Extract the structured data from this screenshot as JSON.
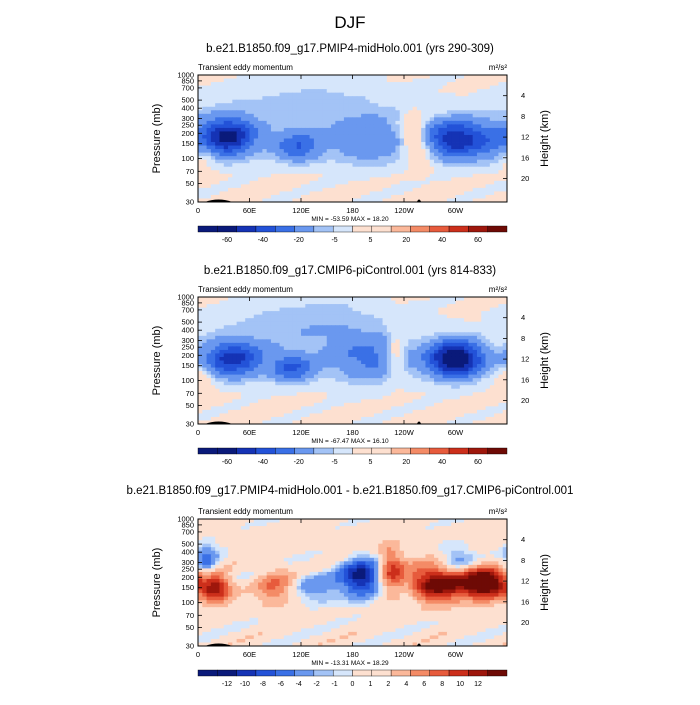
{
  "figure_title": "DJF",
  "colors": {
    "bg": "#fdebe0",
    "plot_border": "#000000",
    "negative_scale": [
      "#0a1a7a",
      "#1533b5",
      "#2352d8",
      "#3a70e6",
      "#6a98ef",
      "#a3c3f6",
      "#d6e6fb"
    ],
    "positive_scale": [
      "#fde0d0",
      "#fbb89a",
      "#f48b66",
      "#e75b3c",
      "#cc2f1b",
      "#9e170c",
      "#6e0a05"
    ]
  },
  "chart_data": [
    {
      "type": "heatmap",
      "title": "b.e21.B1850.f09_g17.PMIP4-midHolo.001 (yrs 290-309)",
      "left_label": "Transient eddy momentum",
      "units_label": "m²/s²",
      "ylabel_left": "Pressure (mb)",
      "ylabel_right": "Height (km)",
      "x_tick_labels": [
        "0",
        "60E",
        "120E",
        "180",
        "120W",
        "60W"
      ],
      "x_ticks_deg": [
        0,
        60,
        120,
        180,
        240,
        300
      ],
      "xlim": [
        0,
        360
      ],
      "pressure_tick_labels": [
        "30",
        "50",
        "70",
        "100",
        "150",
        "200",
        "250",
        "300",
        "400",
        "500",
        "700",
        "850",
        "1000"
      ],
      "pressure_ticks": [
        30,
        50,
        70,
        100,
        150,
        200,
        250,
        300,
        400,
        500,
        700,
        850,
        1000
      ],
      "ylim_mb": [
        1000,
        30
      ],
      "height_tick_labels": [
        "20",
        "16",
        "12",
        "8",
        "4"
      ],
      "height_ticks_km": [
        20,
        16,
        12,
        8,
        4
      ],
      "minmax_text": "MIN = -53.59  MAX =  18.20",
      "min": -53.59,
      "max": 18.2,
      "colorbar_labels": [
        "-60",
        "-40",
        "-20",
        "-5",
        "5",
        "20",
        "40",
        "60"
      ],
      "colorbar_levels": [
        -70,
        -60,
        -50,
        -40,
        -30,
        -20,
        -10,
        -5,
        0,
        5,
        10,
        20,
        30,
        40,
        50,
        60,
        70
      ],
      "features": [
        {
          "lon": 35,
          "p": 180,
          "value": -53.6,
          "wlon": 22,
          "wlogp": 0.16
        },
        {
          "lon": 300,
          "p": 170,
          "value": -48,
          "wlon": 24,
          "wlogp": 0.16
        },
        {
          "lon": 115,
          "p": 140,
          "value": -28,
          "wlon": 20,
          "wlogp": 0.13
        },
        {
          "lon": 200,
          "p": 160,
          "value": -18,
          "wlon": 35,
          "wlogp": 0.2
        },
        {
          "lon": 345,
          "p": 160,
          "value": -15,
          "wlon": 20,
          "wlogp": 0.18
        },
        {
          "lon": 250,
          "p": 190,
          "value": 18.2,
          "wlon": 10,
          "wlogp": 0.18
        },
        {
          "lon": 5,
          "p": 110,
          "value": 10,
          "wlon": 10,
          "wlogp": 0.12
        },
        {
          "lon": 130,
          "p": 400,
          "value": -8,
          "wlon": 80,
          "wlogp": 0.25
        },
        {
          "lon": 265,
          "p": 120,
          "value": 8,
          "wlon": 8,
          "wlogp": 0.15
        }
      ]
    },
    {
      "type": "heatmap",
      "title": "b.e21.B1850.f09_g17.CMIP6-piControl.001 (yrs 814-833)",
      "left_label": "Transient eddy momentum",
      "units_label": "m²/s²",
      "ylabel_left": "Pressure (mb)",
      "ylabel_right": "Height (km)",
      "x_tick_labels": [
        "0",
        "60E",
        "120E",
        "180",
        "120W",
        "60W"
      ],
      "x_ticks_deg": [
        0,
        60,
        120,
        180,
        240,
        300
      ],
      "xlim": [
        0,
        360
      ],
      "pressure_tick_labels": [
        "30",
        "50",
        "70",
        "100",
        "150",
        "200",
        "250",
        "300",
        "400",
        "500",
        "700",
        "850",
        "1000"
      ],
      "pressure_ticks": [
        30,
        50,
        70,
        100,
        150,
        200,
        250,
        300,
        400,
        500,
        700,
        850,
        1000
      ],
      "ylim_mb": [
        1000,
        30
      ],
      "height_tick_labels": [
        "20",
        "16",
        "12",
        "8",
        "4"
      ],
      "height_ticks_km": [
        20,
        16,
        12,
        8,
        4
      ],
      "minmax_text": "MIN = -67.47  MAX =  16.10",
      "min": -67.47,
      "max": 16.1,
      "colorbar_labels": [
        "-60",
        "-40",
        "-20",
        "-5",
        "5",
        "20",
        "40",
        "60"
      ],
      "colorbar_levels": [
        -70,
        -60,
        -50,
        -40,
        -30,
        -20,
        -10,
        -5,
        0,
        5,
        10,
        20,
        30,
        40,
        50,
        60,
        70
      ],
      "features": [
        {
          "lon": 40,
          "p": 180,
          "value": -45,
          "wlon": 25,
          "wlogp": 0.15
        },
        {
          "lon": 300,
          "p": 180,
          "value": -67.5,
          "wlon": 22,
          "wlogp": 0.15
        },
        {
          "lon": 110,
          "p": 140,
          "value": -30,
          "wlon": 18,
          "wlogp": 0.12
        },
        {
          "lon": 200,
          "p": 180,
          "value": -22,
          "wlon": 35,
          "wlogp": 0.2
        },
        {
          "lon": 230,
          "p": 200,
          "value": 16.1,
          "wlon": 8,
          "wlogp": 0.2
        },
        {
          "lon": 5,
          "p": 110,
          "value": 10,
          "wlon": 10,
          "wlogp": 0.12
        },
        {
          "lon": 130,
          "p": 450,
          "value": -10,
          "wlon": 70,
          "wlogp": 0.25
        }
      ]
    },
    {
      "type": "heatmap",
      "title": "b.e21.B1850.f09_g17.PMIP4-midHolo.001 - b.e21.B1850.f09_g17.CMIP6-piControl.001",
      "left_label": "Transient eddy momentum",
      "units_label": "m²/s²",
      "ylabel_left": "Pressure (mb)",
      "ylabel_right": "Height (km)",
      "x_tick_labels": [
        "0",
        "60E",
        "120E",
        "180",
        "120W",
        "60W"
      ],
      "x_ticks_deg": [
        0,
        60,
        120,
        180,
        240,
        300
      ],
      "xlim": [
        0,
        360
      ],
      "pressure_tick_labels": [
        "30",
        "50",
        "70",
        "100",
        "150",
        "200",
        "250",
        "300",
        "400",
        "500",
        "700",
        "850",
        "1000"
      ],
      "pressure_ticks": [
        30,
        50,
        70,
        100,
        150,
        200,
        250,
        300,
        400,
        500,
        700,
        850,
        1000
      ],
      "ylim_mb": [
        1000,
        30
      ],
      "height_tick_labels": [
        "20",
        "16",
        "12",
        "8",
        "4"
      ],
      "height_ticks_km": [
        20,
        16,
        12,
        8,
        4
      ],
      "minmax_text": "MIN = -13.31  MAX =  18.29",
      "min": -13.31,
      "max": 18.29,
      "colorbar_labels": [
        "-12",
        "-10",
        "-8",
        "-6",
        "-4",
        "-2",
        "-1",
        "0",
        "1",
        "2",
        "4",
        "6",
        "8",
        "10",
        "12"
      ],
      "colorbar_levels": [
        -14,
        -12,
        -10,
        -8,
        -6,
        -4,
        -2,
        -1,
        0,
        1,
        2,
        4,
        6,
        8,
        10,
        12,
        14
      ],
      "features": [
        {
          "lon": 20,
          "p": 150,
          "value": 13,
          "wlon": 12,
          "wlogp": 0.12
        },
        {
          "lon": 190,
          "p": 200,
          "value": -13.3,
          "wlon": 16,
          "wlogp": 0.15
        },
        {
          "lon": 225,
          "p": 250,
          "value": 8,
          "wlon": 10,
          "wlogp": 0.2
        },
        {
          "lon": 280,
          "p": 170,
          "value": 15,
          "wlon": 25,
          "wlogp": 0.15
        },
        {
          "lon": 335,
          "p": 170,
          "value": 18.29,
          "wlon": 18,
          "wlogp": 0.12
        },
        {
          "lon": 90,
          "p": 150,
          "value": 6,
          "wlon": 15,
          "wlogp": 0.15
        },
        {
          "lon": 10,
          "p": 300,
          "value": -6,
          "wlon": 10,
          "wlogp": 0.15
        },
        {
          "lon": 140,
          "p": 150,
          "value": -4,
          "wlon": 20,
          "wlogp": 0.15
        },
        {
          "lon": 300,
          "p": 300,
          "value": -5,
          "wlon": 15,
          "wlogp": 0.15
        },
        {
          "lon": 245,
          "p": 120,
          "value": -3,
          "wlon": 10,
          "wlogp": 0.1
        }
      ]
    }
  ]
}
